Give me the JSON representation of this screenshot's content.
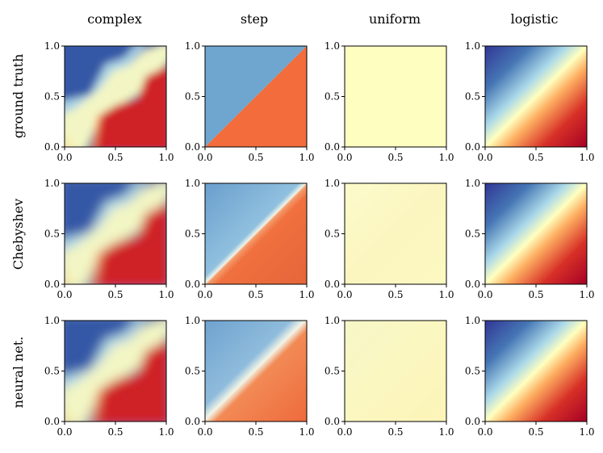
{
  "chart_data": {
    "type": "heatmap",
    "colormap": "RdYlBu_r",
    "column_titles": [
      "complex",
      "step",
      "uniform",
      "logistic"
    ],
    "row_labels": [
      "ground truth",
      "Chebyshev",
      "neural net."
    ],
    "xlim": [
      0,
      1
    ],
    "ylim": [
      0,
      1
    ],
    "tick_values": [
      0.0,
      0.5,
      1.0
    ],
    "x_tick_labels": [
      "0.0",
      "0.5",
      "1.0"
    ],
    "y_tick_labels": [
      "0.0",
      "0.5",
      "1.0"
    ],
    "panels": [
      {
        "row": "ground truth",
        "column": "complex",
        "description": "blue upper-left region, pale yellow diagonal band, red lower-right"
      },
      {
        "row": "ground truth",
        "column": "step",
        "description": "sharp diagonal: blue above y=x, orange below"
      },
      {
        "row": "ground truth",
        "column": "uniform",
        "description": "constant pale yellow"
      },
      {
        "row": "ground truth",
        "column": "logistic",
        "description": "smooth blue-to-red transition across diagonal"
      },
      {
        "row": "Chebyshev",
        "column": "complex",
        "description": "approximation of complex function"
      },
      {
        "row": "Chebyshev",
        "column": "step",
        "description": "blurred diagonal step with artifacts"
      },
      {
        "row": "Chebyshev",
        "column": "uniform",
        "description": "near-constant pale yellow"
      },
      {
        "row": "Chebyshev",
        "column": "logistic",
        "description": "smooth logistic approximation"
      },
      {
        "row": "neural net.",
        "column": "complex",
        "description": "approximation of complex function"
      },
      {
        "row": "neural net.",
        "column": "step",
        "description": "smoothed diagonal step"
      },
      {
        "row": "neural net.",
        "column": "uniform",
        "description": "near-constant pale yellow"
      },
      {
        "row": "neural net.",
        "column": "logistic",
        "description": "smooth logistic approximation"
      }
    ]
  }
}
